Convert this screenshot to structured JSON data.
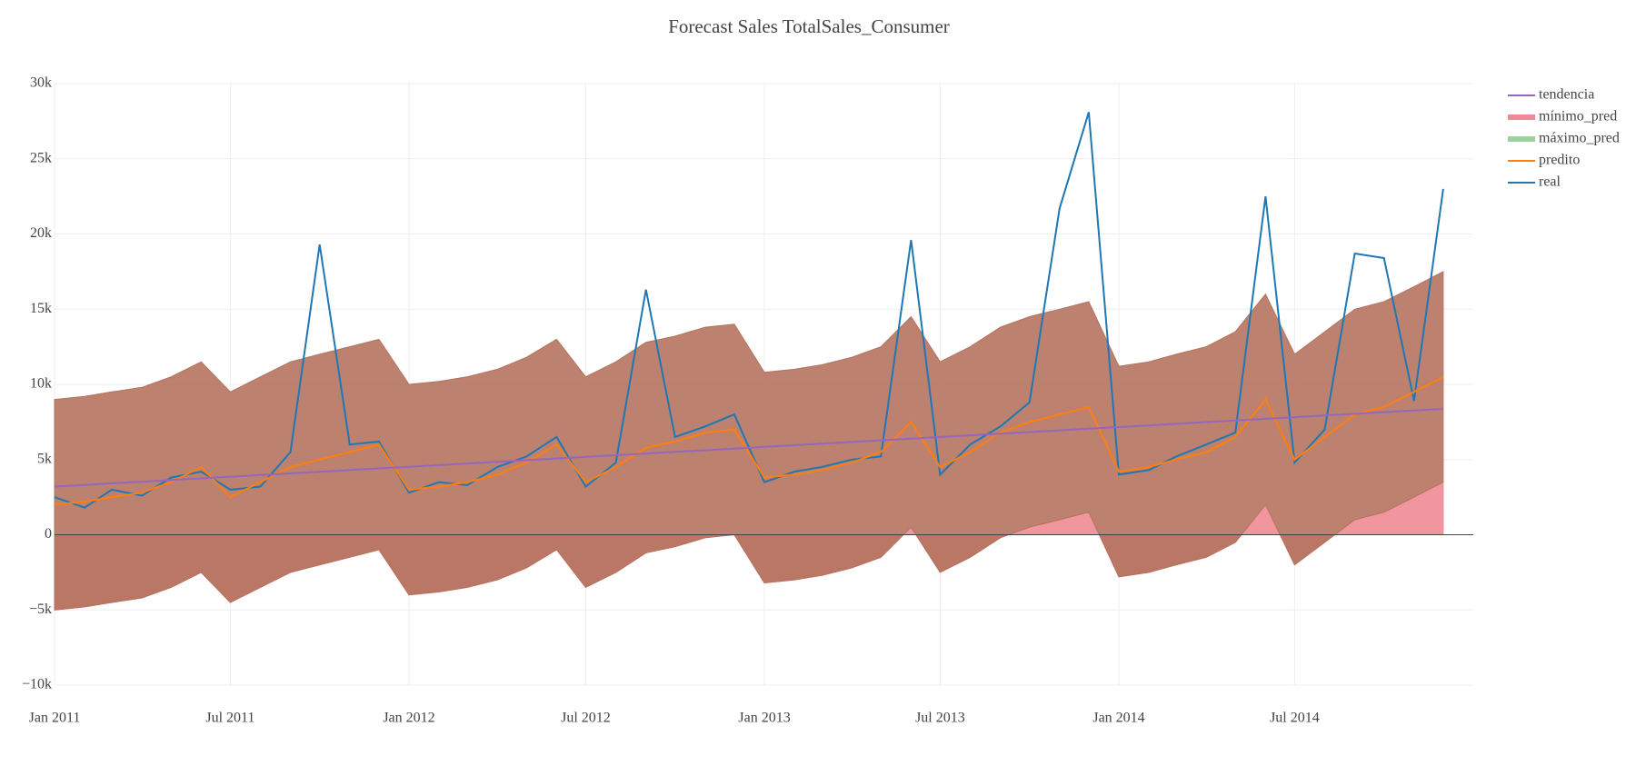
{
  "chart_data": {
    "type": "line",
    "title": "Forecast Sales TotalSales_Consumer",
    "x": [
      "2011-01",
      "2011-02",
      "2011-03",
      "2011-04",
      "2011-05",
      "2011-06",
      "2011-07",
      "2011-08",
      "2011-09",
      "2011-10",
      "2011-11",
      "2011-12",
      "2012-01",
      "2012-02",
      "2012-03",
      "2012-04",
      "2012-05",
      "2012-06",
      "2012-07",
      "2012-08",
      "2012-09",
      "2012-10",
      "2012-11",
      "2012-12",
      "2013-01",
      "2013-02",
      "2013-03",
      "2013-04",
      "2013-05",
      "2013-06",
      "2013-07",
      "2013-08",
      "2013-09",
      "2013-10",
      "2013-11",
      "2013-12",
      "2014-01",
      "2014-02",
      "2014-03",
      "2014-04",
      "2014-05",
      "2014-06",
      "2014-07",
      "2014-08",
      "2014-09",
      "2014-10",
      "2014-11",
      "2014-12"
    ],
    "xlim": [
      "2011-01",
      "2015-01"
    ],
    "xticks": [
      {
        "value": "2011-01",
        "label": "Jan 2011"
      },
      {
        "value": "2011-07",
        "label": "Jul 2011"
      },
      {
        "value": "2012-01",
        "label": "Jan 2012"
      },
      {
        "value": "2012-07",
        "label": "Jul 2012"
      },
      {
        "value": "2013-01",
        "label": "Jan 2013"
      },
      {
        "value": "2013-07",
        "label": "Jul 2013"
      },
      {
        "value": "2014-01",
        "label": "Jan 2014"
      },
      {
        "value": "2014-07",
        "label": "Jul 2014"
      }
    ],
    "ylim": [
      -10000,
      30000
    ],
    "yticks": [
      {
        "value": -10000,
        "label": "−10k"
      },
      {
        "value": -5000,
        "label": "−5k"
      },
      0,
      {
        "value": 5000,
        "label": "5k"
      },
      {
        "value": 10000,
        "label": "10k"
      },
      {
        "value": 15000,
        "label": "15k"
      },
      {
        "value": 20000,
        "label": "20k"
      },
      {
        "value": 25000,
        "label": "25k"
      },
      {
        "value": 30000,
        "label": "30k"
      }
    ],
    "grid": true,
    "legend": "right",
    "series": [
      {
        "name": "tendencia",
        "color": "#9467bd",
        "values": [
          3200,
          3310,
          3420,
          3530,
          3640,
          3750,
          3860,
          3970,
          4080,
          4190,
          4300,
          4410,
          4520,
          4630,
          4740,
          4850,
          4960,
          5070,
          5180,
          5290,
          5400,
          5510,
          5620,
          5730,
          5840,
          5950,
          6060,
          6170,
          6280,
          6390,
          6500,
          6610,
          6720,
          6830,
          6940,
          7050,
          7160,
          7270,
          7380,
          7490,
          7600,
          7710,
          7820,
          7930,
          8040,
          8150,
          8260,
          8370
        ]
      },
      {
        "name": "mínimo_pred",
        "color": "#ef8a94",
        "values": [
          -5000,
          -4800,
          -4500,
          -4200,
          -3500,
          -2500,
          -4500,
          -3500,
          -2500,
          -2000,
          -1500,
          -1000,
          -4000,
          -3800,
          -3500,
          -3000,
          -2200,
          -1000,
          -3500,
          -2500,
          -1200,
          -800,
          -200,
          0,
          -3200,
          -3000,
          -2700,
          -2200,
          -1500,
          500,
          -2500,
          -1500,
          -200,
          500,
          1000,
          1500,
          -2800,
          -2500,
          -2000,
          -1500,
          -500,
          2000,
          -2000,
          -500,
          1000,
          1500,
          2500,
          3500
        ]
      },
      {
        "name": "máximo_pred",
        "color": "#98d49c",
        "fill": "#b5735f",
        "values": [
          9000,
          9200,
          9500,
          9800,
          10500,
          11500,
          9500,
          10500,
          11500,
          12000,
          12500,
          13000,
          10000,
          10200,
          10500,
          11000,
          11800,
          13000,
          10500,
          11500,
          12800,
          13200,
          13800,
          14000,
          10800,
          11000,
          11300,
          11800,
          12500,
          14500,
          11500,
          12500,
          13800,
          14500,
          15000,
          15500,
          11200,
          11500,
          12000,
          12500,
          13500,
          16000,
          12000,
          13500,
          15000,
          15500,
          16500,
          17500
        ]
      },
      {
        "name": "predito",
        "color": "#ff7f0e",
        "values": [
          2000,
          2200,
          2500,
          2800,
          3500,
          4500,
          2500,
          3500,
          4500,
          5000,
          5500,
          6000,
          3000,
          3200,
          3500,
          4000,
          4800,
          6000,
          3500,
          4500,
          5800,
          6200,
          6800,
          7000,
          3800,
          4000,
          4300,
          4800,
          5500,
          7500,
          4500,
          5500,
          6800,
          7500,
          8000,
          8500,
          4200,
          4500,
          5000,
          5500,
          6500,
          9000,
          5000,
          6500,
          8000,
          8500,
          9500,
          10500
        ]
      },
      {
        "name": "real",
        "color": "#1f77b4",
        "values": [
          2500,
          1800,
          3000,
          2600,
          3800,
          4200,
          3000,
          3200,
          5500,
          19300,
          6000,
          6200,
          2800,
          3500,
          3300,
          4500,
          5200,
          6500,
          3200,
          4800,
          16300,
          6500,
          7200,
          8000,
          3500,
          4200,
          4500,
          5000,
          5200,
          19600,
          4000,
          6000,
          7200,
          8800,
          21700,
          28100,
          4000,
          4300,
          5200,
          6000,
          6800,
          22500,
          4800,
          7000,
          18700,
          18400,
          8900,
          23000
        ]
      }
    ]
  }
}
